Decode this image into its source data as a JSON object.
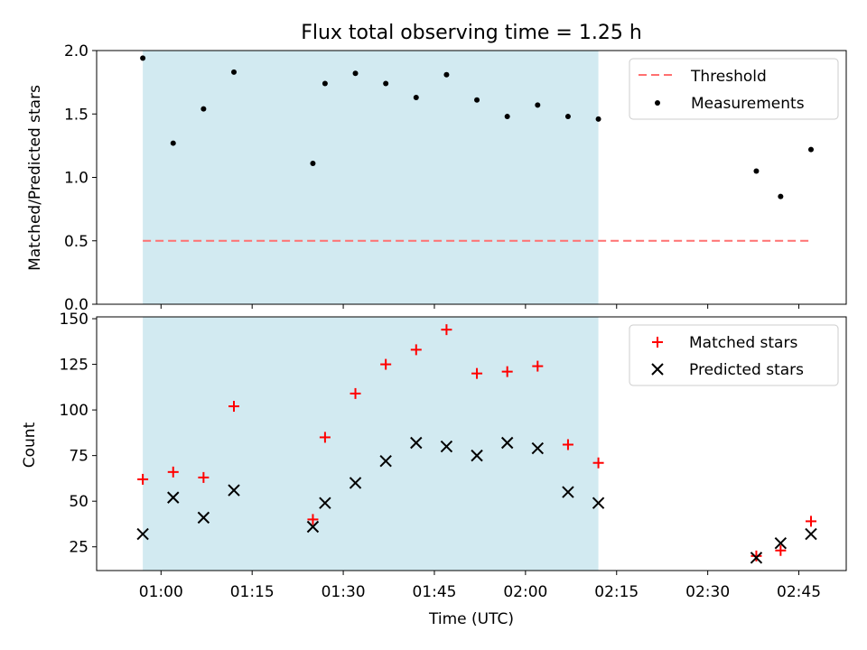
{
  "title": "Flux total observing time = 1.25 h",
  "colors": {
    "threshold": "#ff7070",
    "measurement": "#000000",
    "matched": "#ff0000",
    "predicted": "#000000",
    "observing_span": "#add8e6"
  },
  "chart_data": [
    {
      "type": "scatter",
      "ylabel": "Matched/Predicted stars",
      "ylim": [
        0.0,
        2.0
      ],
      "yticks": [
        "0.0",
        "0.5",
        "1.0",
        "1.5",
        "2.0"
      ],
      "shaded_span": [
        "00:57",
        "02:12"
      ],
      "legend": {
        "position": "top-right",
        "entries": [
          "Threshold",
          "Measurements"
        ]
      },
      "threshold": {
        "name": "Threshold",
        "value": 0.5,
        "x_range": [
          "00:57",
          "02:47"
        ]
      },
      "series": [
        {
          "name": "Measurements",
          "x": [
            "00:57",
            "01:02",
            "01:07",
            "01:12",
            "01:25",
            "01:27",
            "01:32",
            "01:37",
            "01:42",
            "01:47",
            "01:52",
            "01:57",
            "02:02",
            "02:07",
            "02:12",
            "02:38",
            "02:42",
            "02:47"
          ],
          "values": [
            1.94,
            1.27,
            1.54,
            1.83,
            1.11,
            1.74,
            1.82,
            1.74,
            1.63,
            1.81,
            1.61,
            1.48,
            1.57,
            1.48,
            1.46,
            1.05,
            0.85,
            1.22
          ]
        }
      ]
    },
    {
      "type": "scatter",
      "xlabel": "Time (UTC)",
      "ylabel": "Count",
      "ylim": [
        12,
        151
      ],
      "yticks": [
        "25",
        "50",
        "75",
        "100",
        "125",
        "150"
      ],
      "xticks": [
        "01:00",
        "01:15",
        "01:30",
        "01:45",
        "02:00",
        "02:15",
        "02:30",
        "02:45"
      ],
      "shaded_span": [
        "00:57",
        "02:12"
      ],
      "legend": {
        "position": "top-right",
        "entries": [
          "Matched stars",
          "Predicted stars"
        ]
      },
      "x": [
        "00:57",
        "01:02",
        "01:07",
        "01:12",
        "01:25",
        "01:27",
        "01:32",
        "01:37",
        "01:42",
        "01:47",
        "01:52",
        "01:57",
        "02:02",
        "02:07",
        "02:12",
        "02:38",
        "02:42",
        "02:47"
      ],
      "series": [
        {
          "name": "Matched stars",
          "values": [
            62,
            66,
            63,
            102,
            40,
            85,
            109,
            125,
            133,
            144,
            120,
            121,
            124,
            81,
            71,
            20,
            23,
            39
          ]
        },
        {
          "name": "Predicted stars",
          "values": [
            32,
            52,
            41,
            56,
            36,
            49,
            60,
            72,
            82,
            80,
            75,
            82,
            79,
            55,
            49,
            19,
            27,
            32
          ]
        }
      ]
    }
  ]
}
